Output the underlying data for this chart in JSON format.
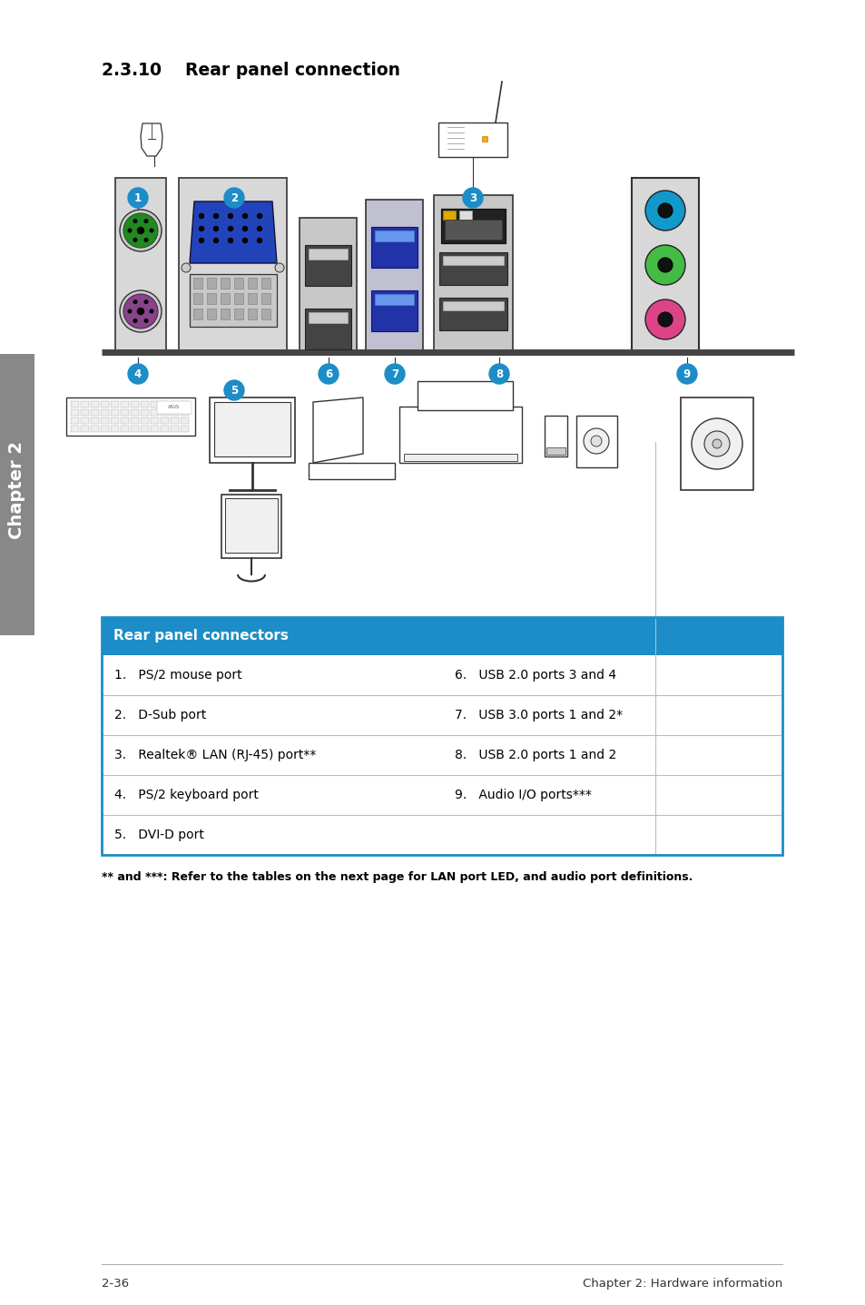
{
  "page_title": "2.3.10    Rear panel connection",
  "section_header": "Rear panel connectors",
  "header_bg": "#1c8dc7",
  "header_text_color": "#ffffff",
  "table_border_color": "#1c8dc7",
  "row_divider_color": "#bbbbbb",
  "left_col": [
    "1.   PS/2 mouse port",
    "2.   D-Sub port",
    "3.   Realtek® LAN (RJ-45) port**",
    "4.   PS/2 keyboard port",
    "5.   DVI-D port"
  ],
  "right_col": [
    "6.   USB 2.0 ports 3 and 4",
    "7.   USB 3.0 ports 1 and 2*",
    "8.   USB 2.0 ports 1 and 2",
    "9.   Audio I/O ports***",
    ""
  ],
  "footnote": "** and ***: Refer to the tables on the next page for LAN port LED, and audio port definitions.",
  "footer_left": "2-36",
  "footer_right": "Chapter 2: Hardware information",
  "sidebar_text": "Chapter 2",
  "sidebar_bg": "#888888",
  "background_color": "#ffffff",
  "body_text_color": "#000000",
  "num_label_bg": "#1c8dc7",
  "shelf_color": "#444444",
  "line_color": "#333333",
  "light_gray": "#e8e8e8",
  "mid_gray": "#cccccc",
  "dark_gray": "#555555",
  "ps2_green": "#228822",
  "ps2_purple": "#884488",
  "audio_blue": "#1199cc",
  "audio_green": "#44bb44",
  "audio_pink": "#dd4488",
  "vga_blue": "#2244bb",
  "lan_yellow": "#ddaa00",
  "usb3_blue": "#3355bb"
}
